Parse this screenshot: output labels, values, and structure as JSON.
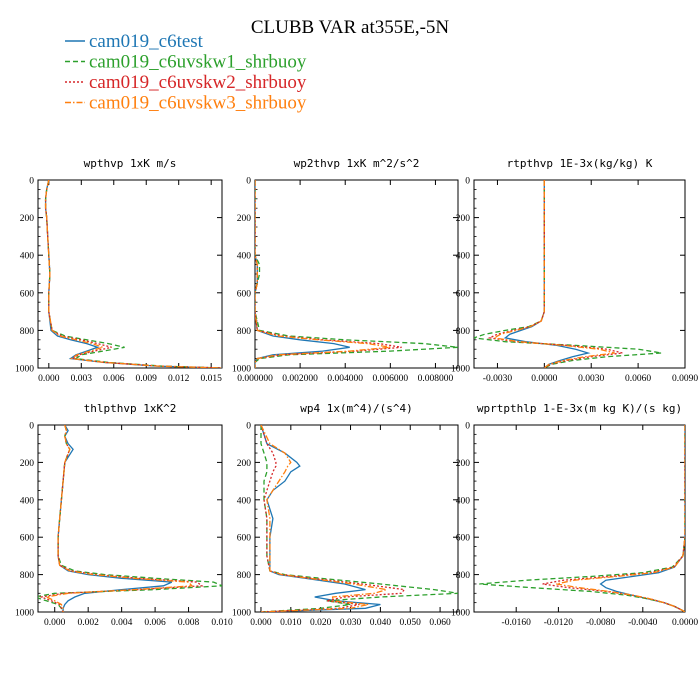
{
  "title": "CLUBB VAR at355E,-5N",
  "legend": [
    {
      "name": "cam019_c6test",
      "color": "#1f77b4",
      "dash": "solid"
    },
    {
      "name": "cam019_c6uvskw1_shrbuoy",
      "color": "#2ca02c",
      "dash": "dash"
    },
    {
      "name": "cam019_c6uvskw2_shrbuoy",
      "color": "#d62728",
      "dash": "dot"
    },
    {
      "name": "cam019_c6uvskw3_shrbuoy",
      "color": "#ff7f0e",
      "dash": "dashdot"
    }
  ],
  "chart_data": [
    {
      "type": "line",
      "title": "wpthvp   1xK m/s",
      "xlim": [
        -0.001,
        0.016
      ],
      "xticks": [
        0.0,
        0.003,
        0.006,
        0.009,
        0.012,
        0.015
      ],
      "xtick_labels": [
        "0.000",
        "0.003",
        "0.006",
        "0.009",
        "0.012",
        "0.015"
      ],
      "ylim": [
        0,
        1000
      ],
      "yticks": [
        0,
        200,
        400,
        600,
        800,
        1000
      ],
      "y": [
        0,
        50,
        100,
        150,
        200,
        300,
        400,
        500,
        600,
        700,
        800,
        830,
        850,
        870,
        890,
        910,
        930,
        950,
        970,
        990,
        1000
      ],
      "series": [
        {
          "name": "cam019_c6test",
          "values": [
            0.0,
            -0.0002,
            -0.0003,
            -0.0003,
            -0.0002,
            -0.0001,
            0.0,
            0.0001,
            0.0,
            0.0,
            0.0002,
            0.0008,
            0.002,
            0.0035,
            0.0045,
            0.0035,
            0.0025,
            0.002,
            0.005,
            0.01,
            0.016
          ]
        },
        {
          "name": "cam019_c6uvskw1_shrbuoy",
          "values": [
            0.0,
            -0.0002,
            -0.0003,
            -0.0003,
            -0.0002,
            -0.0001,
            0.0,
            0.0001,
            0.0,
            0.0,
            0.0003,
            0.0015,
            0.0035,
            0.0055,
            0.007,
            0.005,
            0.003,
            0.0025,
            0.0055,
            0.0105,
            0.016
          ]
        },
        {
          "name": "cam019_c6uvskw2_shrbuoy",
          "values": [
            0.0,
            -0.0002,
            -0.0003,
            -0.0003,
            -0.0002,
            -0.0001,
            0.0,
            0.0001,
            0.0,
            0.0,
            0.0003,
            0.0012,
            0.003,
            0.0045,
            0.0058,
            0.0042,
            0.0028,
            0.0022,
            0.0052,
            0.0102,
            0.016
          ]
        },
        {
          "name": "cam019_c6uvskw3_shrbuoy",
          "values": [
            0.0,
            -0.0002,
            -0.0003,
            -0.0003,
            -0.0002,
            -0.0001,
            0.0,
            0.0001,
            0.0,
            0.0,
            0.0003,
            0.001,
            0.0025,
            0.004,
            0.005,
            0.0038,
            0.0026,
            0.0021,
            0.0051,
            0.0101,
            0.016
          ]
        }
      ]
    },
    {
      "type": "line",
      "title": "wp2thvp   1xK m^2/s^2",
      "xlim": [
        0.0,
        0.009
      ],
      "xticks": [
        0.0,
        0.002,
        0.004,
        0.006,
        0.008
      ],
      "xtick_labels": [
        "0.000000",
        "0.002000",
        "0.004000",
        "0.006000",
        "0.008000"
      ],
      "ylim": [
        0,
        1000
      ],
      "yticks": [
        0,
        200,
        400,
        600,
        800,
        1000
      ],
      "y": [
        0,
        100,
        200,
        300,
        400,
        450,
        500,
        550,
        600,
        700,
        800,
        830,
        850,
        870,
        890,
        910,
        930,
        950,
        970,
        1000
      ],
      "series": [
        {
          "name": "cam019_c6test",
          "values": [
            0.0,
            0.0,
            0.0,
            0.0,
            0.0,
            0.0001,
            0.0001,
            0.0001,
            0.0,
            0.0,
            0.0001,
            0.0008,
            0.002,
            0.0035,
            0.0042,
            0.003,
            0.0008,
            0.0001,
            0.0,
            0.0
          ]
        },
        {
          "name": "cam019_c6uvskw1_shrbuoy",
          "values": [
            0.0,
            0.0,
            0.0,
            0.0,
            0.0,
            0.0002,
            0.0002,
            0.0001,
            0.0,
            0.0,
            0.0002,
            0.0015,
            0.004,
            0.0075,
            0.009,
            0.006,
            0.0015,
            0.0002,
            0.0,
            0.0
          ]
        },
        {
          "name": "cam019_c6uvskw2_shrbuoy",
          "values": [
            0.0,
            0.0,
            0.0,
            0.0,
            0.0,
            0.0001,
            0.0001,
            0.0001,
            0.0,
            0.0,
            0.0001,
            0.0012,
            0.003,
            0.0055,
            0.0065,
            0.0045,
            0.0012,
            0.0001,
            0.0,
            0.0
          ]
        },
        {
          "name": "cam019_c6uvskw3_shrbuoy",
          "values": [
            0.0,
            0.0,
            0.0,
            0.0,
            0.0,
            0.0001,
            0.0001,
            0.0001,
            0.0,
            0.0,
            0.0001,
            0.001,
            0.0028,
            0.005,
            0.006,
            0.0042,
            0.001,
            0.0001,
            0.0,
            0.0
          ]
        }
      ]
    },
    {
      "type": "line",
      "title": "rtpthvp   1E-3x(kg/kg) K",
      "xlim": [
        -0.0045,
        0.009
      ],
      "xticks": [
        -0.003,
        0.0,
        0.003,
        0.006,
        0.009
      ],
      "xtick_labels": [
        "-0.0030",
        "0.0000",
        "0.0030",
        "0.0060",
        "0.0090"
      ],
      "ylim": [
        0,
        1000
      ],
      "yticks": [
        0,
        200,
        400,
        600,
        800,
        1000
      ],
      "y": [
        0,
        200,
        400,
        600,
        700,
        750,
        780,
        800,
        820,
        840,
        860,
        880,
        900,
        920,
        940,
        960,
        980,
        1000
      ],
      "series": [
        {
          "name": "cam019_c6test",
          "values": [
            0.0,
            0.0,
            0.0,
            0.0,
            0.0,
            -0.0002,
            -0.0008,
            -0.0015,
            -0.0022,
            -0.0025,
            -0.0012,
            0.0008,
            0.002,
            0.0028,
            0.0018,
            0.001,
            0.0003,
            0.0
          ]
        },
        {
          "name": "cam019_c6uvskw1_shrbuoy",
          "values": [
            0.0,
            0.0,
            0.0,
            0.0,
            0.0,
            -0.0002,
            -0.001,
            -0.0025,
            -0.0038,
            -0.0045,
            -0.0025,
            0.002,
            0.006,
            0.0075,
            0.004,
            0.0018,
            0.0005,
            0.0
          ]
        },
        {
          "name": "cam019_c6uvskw2_shrbuoy",
          "values": [
            0.0,
            0.0,
            0.0,
            0.0,
            0.0,
            -0.0002,
            -0.0009,
            -0.002,
            -0.003,
            -0.0035,
            -0.0018,
            0.0015,
            0.004,
            0.005,
            0.003,
            0.0014,
            0.0004,
            0.0
          ]
        },
        {
          "name": "cam019_c6uvskw3_shrbuoy",
          "values": [
            0.0,
            0.0,
            0.0,
            0.0,
            0.0,
            -0.0002,
            -0.0009,
            -0.0018,
            -0.0028,
            -0.0032,
            -0.0016,
            0.0012,
            0.0035,
            0.0045,
            0.0026,
            0.0012,
            0.0003,
            0.0
          ]
        }
      ]
    },
    {
      "type": "line",
      "title": "thlpthvp   1xK^2",
      "xlim": [
        -0.001,
        0.01
      ],
      "xticks": [
        0.0,
        0.002,
        0.004,
        0.006,
        0.008,
        0.01
      ],
      "xtick_labels": [
        "0.000",
        "0.002",
        "0.004",
        "0.006",
        "0.008",
        "0.010"
      ],
      "ylim": [
        0,
        1000
      ],
      "yticks": [
        0,
        200,
        400,
        600,
        800,
        1000
      ],
      "y": [
        0,
        30,
        60,
        100,
        130,
        200,
        300,
        400,
        500,
        600,
        700,
        750,
        780,
        800,
        820,
        840,
        860,
        880,
        900,
        920,
        940,
        960,
        980,
        1000
      ],
      "series": [
        {
          "name": "cam019_c6test",
          "values": [
            0.0006,
            0.0008,
            0.0006,
            0.0008,
            0.0011,
            0.0006,
            0.0005,
            0.0004,
            0.0003,
            0.0002,
            0.0002,
            0.0003,
            0.0008,
            0.002,
            0.004,
            0.007,
            0.0065,
            0.004,
            0.0018,
            0.0012,
            0.0008,
            0.0006,
            0.0005,
            0.0005
          ]
        },
        {
          "name": "cam019_c6uvskw1_shrbuoy",
          "values": [
            0.0006,
            0.0007,
            0.0006,
            0.0007,
            0.0009,
            0.0006,
            0.0005,
            0.0004,
            0.0003,
            0.0002,
            0.0002,
            0.0004,
            0.0012,
            0.003,
            0.006,
            0.0095,
            0.01,
            0.006,
            0.0,
            -0.0012,
            -0.0005,
            0.0002,
            0.0004,
            0.0005
          ]
        },
        {
          "name": "cam019_c6uvskw2_shrbuoy",
          "values": [
            0.0006,
            0.0007,
            0.0006,
            0.0007,
            0.0009,
            0.0006,
            0.0005,
            0.0004,
            0.0003,
            0.0002,
            0.0002,
            0.0003,
            0.001,
            0.0025,
            0.005,
            0.0085,
            0.0088,
            0.005,
            0.0005,
            -0.0008,
            -0.0002,
            0.0003,
            0.0004,
            0.0005
          ]
        },
        {
          "name": "cam019_c6uvskw3_shrbuoy",
          "values": [
            0.0006,
            0.0007,
            0.0006,
            0.0007,
            0.0009,
            0.0006,
            0.0005,
            0.0004,
            0.0003,
            0.0002,
            0.0002,
            0.0003,
            0.0009,
            0.0023,
            0.0047,
            0.008,
            0.0082,
            0.0048,
            0.0008,
            -0.0005,
            0.0,
            0.0004,
            0.0005,
            0.0005
          ]
        }
      ]
    },
    {
      "type": "line",
      "title": "wp4   1x(m^4)/(s^4)",
      "xlim": [
        -0.002,
        0.066
      ],
      "xticks": [
        0.0,
        0.01,
        0.02,
        0.03,
        0.04,
        0.05,
        0.06
      ],
      "xtick_labels": [
        "0.000",
        "0.010",
        "0.020",
        "0.030",
        "0.040",
        "0.050",
        "0.060"
      ],
      "ylim": [
        0,
        1000
      ],
      "yticks": [
        0,
        200,
        400,
        600,
        800,
        1000
      ],
      "y": [
        0,
        100,
        150,
        200,
        220,
        250,
        300,
        350,
        400,
        500,
        600,
        700,
        780,
        800,
        820,
        850,
        880,
        900,
        920,
        940,
        960,
        980,
        1000
      ],
      "series": [
        {
          "name": "cam019_c6test",
          "values": [
            0.0,
            0.002,
            0.008,
            0.012,
            0.013,
            0.01,
            0.008,
            0.004,
            0.002,
            0.004,
            0.003,
            0.003,
            0.003,
            0.006,
            0.015,
            0.028,
            0.035,
            0.025,
            0.018,
            0.025,
            0.04,
            0.035,
            0.0
          ]
        },
        {
          "name": "cam019_c6uvskw1_shrbuoy",
          "values": [
            0.0,
            0.0,
            0.001,
            0.002,
            0.002,
            0.002,
            0.001,
            0.001,
            0.001,
            0.002,
            0.002,
            0.002,
            0.003,
            0.008,
            0.02,
            0.04,
            0.058,
            0.066,
            0.04,
            0.022,
            0.03,
            0.02,
            0.0
          ]
        },
        {
          "name": "cam019_c6uvskw2_shrbuoy",
          "values": [
            0.0,
            0.002,
            0.004,
            0.005,
            0.005,
            0.004,
            0.003,
            0.002,
            0.001,
            0.002,
            0.002,
            0.002,
            0.003,
            0.007,
            0.017,
            0.034,
            0.048,
            0.047,
            0.028,
            0.022,
            0.033,
            0.026,
            0.0
          ]
        },
        {
          "name": "cam019_c6uvskw3_shrbuoy",
          "values": [
            0.0,
            0.003,
            0.008,
            0.01,
            0.009,
            0.008,
            0.006,
            0.004,
            0.002,
            0.003,
            0.003,
            0.003,
            0.003,
            0.007,
            0.016,
            0.031,
            0.042,
            0.038,
            0.024,
            0.024,
            0.036,
            0.03,
            0.0
          ]
        }
      ]
    },
    {
      "type": "line",
      "title": "wprtpthlp   1-E-3x(m kg K)/(s kg)",
      "xlim": [
        -0.02,
        0.0
      ],
      "xticks": [
        -0.016,
        -0.012,
        -0.008,
        -0.004,
        0.0
      ],
      "xtick_labels": [
        "-0.0160",
        "-0.0120",
        "-0.0080",
        "-0.0040",
        "0.0000"
      ],
      "ylim": [
        0,
        1000
      ],
      "yticks": [
        0,
        200,
        400,
        600,
        800,
        1000
      ],
      "y": [
        0,
        300,
        500,
        550,
        600,
        700,
        760,
        790,
        810,
        830,
        850,
        870,
        890,
        910,
        930,
        950,
        970,
        990,
        1000
      ],
      "series": [
        {
          "name": "cam019_c6test",
          "values": [
            0.0,
            0.0,
            0.0,
            0.0,
            0.0,
            -0.0002,
            -0.001,
            -0.0025,
            -0.005,
            -0.0075,
            -0.008,
            -0.0075,
            -0.0065,
            -0.005,
            -0.0035,
            -0.002,
            -0.001,
            -0.0003,
            0.0
          ]
        },
        {
          "name": "cam019_c6uvskw1_shrbuoy",
          "values": [
            0.0,
            0.0,
            0.0,
            0.0,
            0.0,
            -0.0002,
            -0.0012,
            -0.004,
            -0.009,
            -0.015,
            -0.0195,
            -0.0145,
            -0.009,
            -0.0055,
            -0.0035,
            -0.002,
            -0.001,
            -0.0003,
            0.0
          ]
        },
        {
          "name": "cam019_c6uvskw2_shrbuoy",
          "values": [
            0.0,
            0.0,
            0.0,
            0.0,
            0.0,
            -0.0002,
            -0.0011,
            -0.0033,
            -0.0072,
            -0.0115,
            -0.0135,
            -0.011,
            -0.0075,
            -0.005,
            -0.0033,
            -0.002,
            -0.001,
            -0.0003,
            0.0
          ]
        },
        {
          "name": "cam019_c6uvskw3_shrbuoy",
          "values": [
            0.0,
            0.0,
            0.0,
            0.0,
            0.0,
            -0.0002,
            -0.001,
            -0.003,
            -0.0065,
            -0.0105,
            -0.0122,
            -0.01,
            -0.0072,
            -0.0049,
            -0.0033,
            -0.002,
            -0.001,
            -0.0003,
            0.0
          ]
        }
      ]
    }
  ]
}
